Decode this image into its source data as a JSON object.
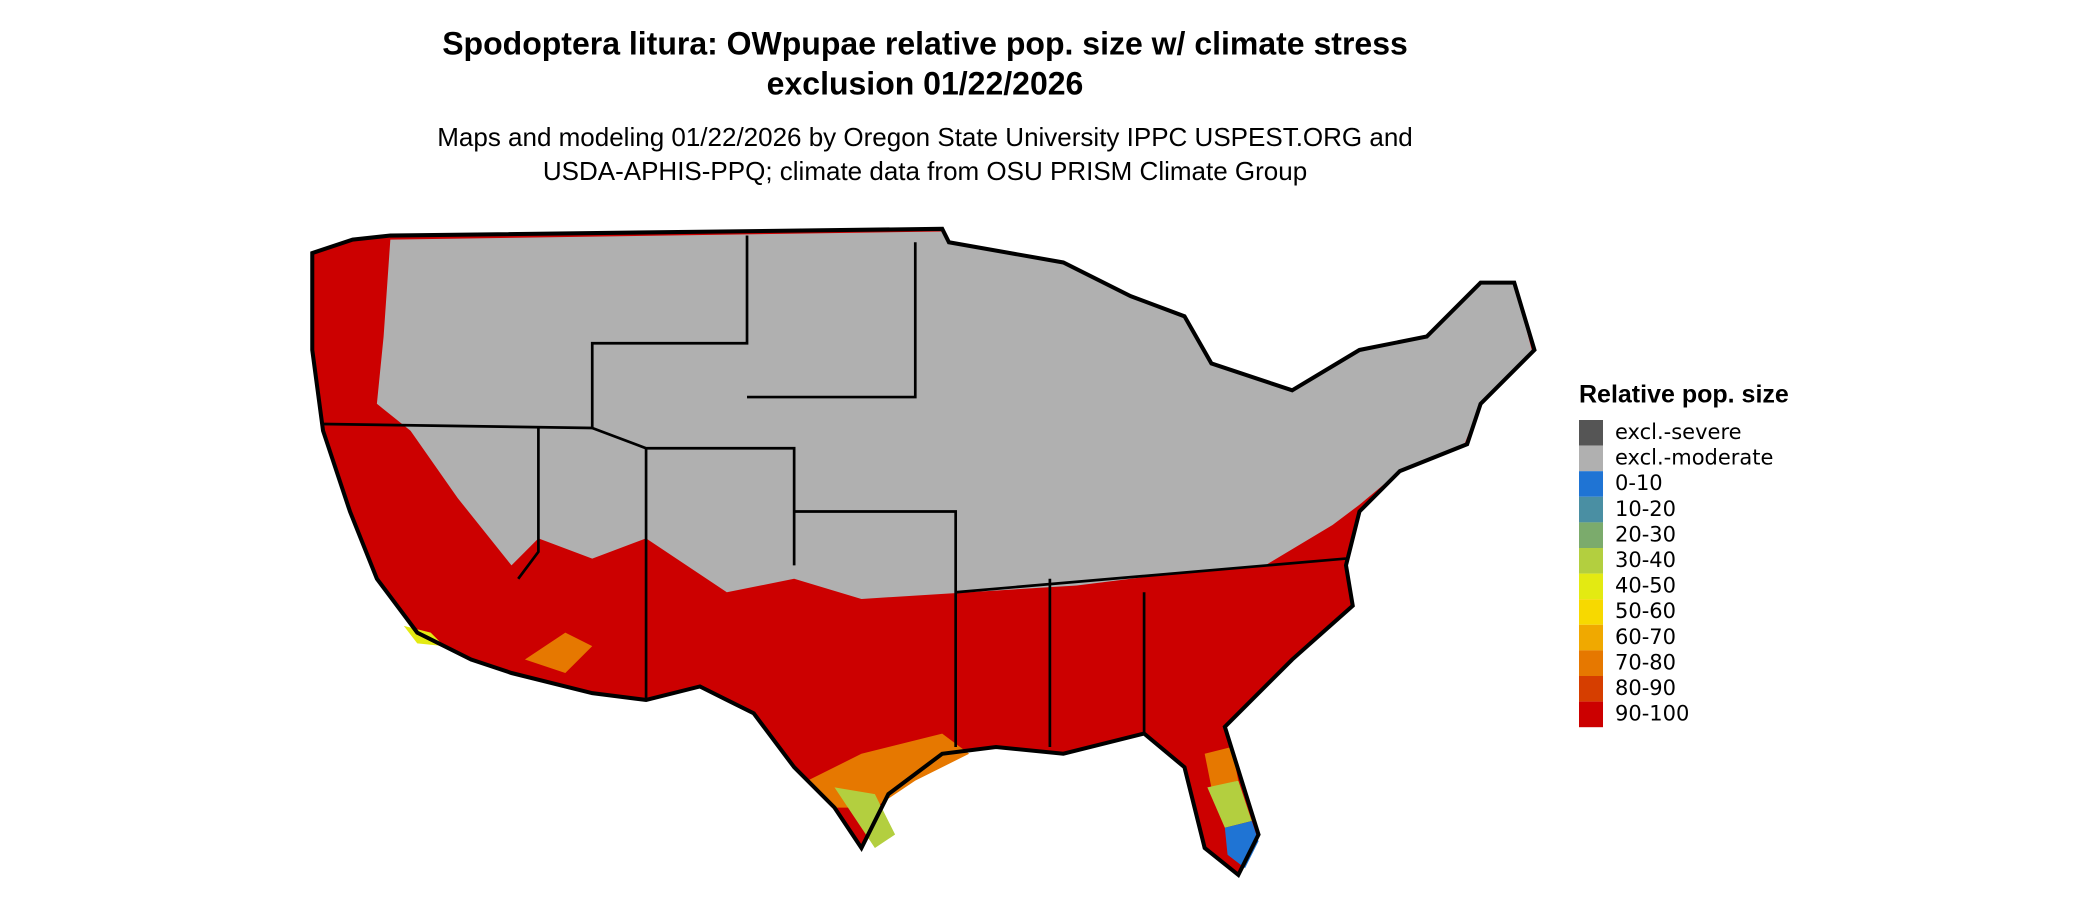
{
  "title_lines": [
    "Spodoptera litura: OWpupae relative pop. size w/ climate stress",
    "exclusion 01/22/2026"
  ],
  "subtitle_lines": [
    "Maps and modeling 01/22/2026 by Oregon State University IPPC USPEST.ORG and",
    "USDA-APHIS-PPQ; climate data from OSU PRISM Climate Group"
  ],
  "legend": {
    "title": "Relative pop. size",
    "items": [
      {
        "label": "excl.-severe",
        "color": "#555555"
      },
      {
        "label": "excl.-moderate",
        "color": "#b0b0b0"
      },
      {
        "label": "0-10",
        "color": "#1f74d4"
      },
      {
        "label": "10-20",
        "color": "#4a8fa3"
      },
      {
        "label": "20-30",
        "color": "#7bab6c"
      },
      {
        "label": "30-40",
        "color": "#b3cf3f"
      },
      {
        "label": "40-50",
        "color": "#e3ea12"
      },
      {
        "label": "50-60",
        "color": "#f7d900"
      },
      {
        "label": "60-70",
        "color": "#f0a900"
      },
      {
        "label": "70-80",
        "color": "#e67800"
      },
      {
        "label": "80-90",
        "color": "#d63e00"
      },
      {
        "label": "90-100",
        "color": "#cc0000"
      }
    ]
  }
}
